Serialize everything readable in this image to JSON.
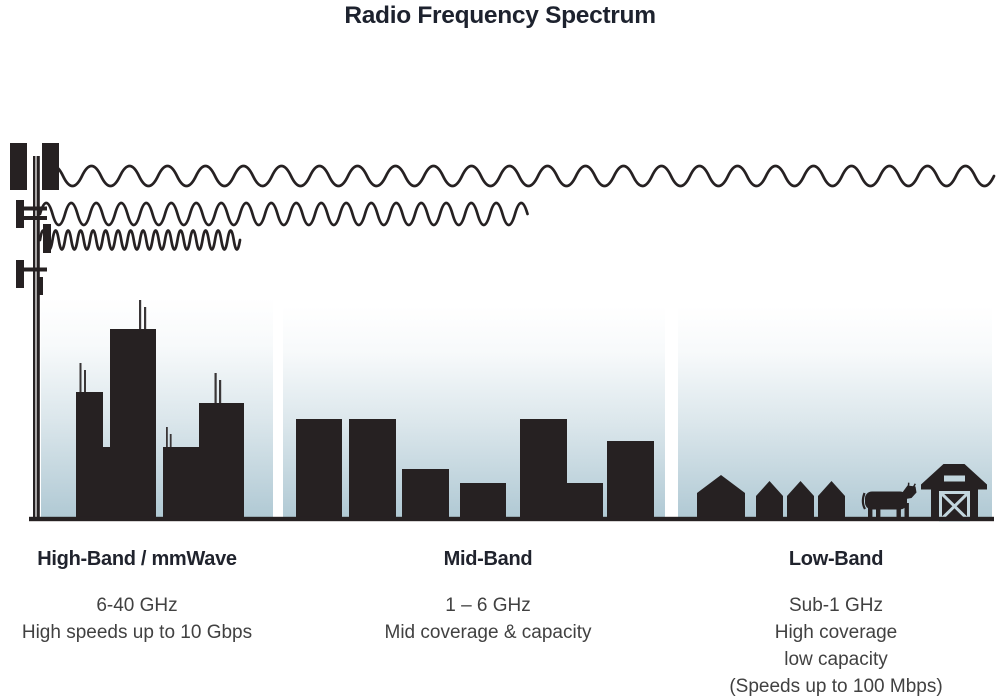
{
  "title": "Radio Frequency Spectrum",
  "bands": [
    {
      "id": "high-band",
      "name": "High-Band / mmWave",
      "details": [
        "6-40 GHz",
        "High speeds up to 10 Gbps"
      ]
    },
    {
      "id": "mid-band",
      "name": "Mid-Band",
      "details": [
        "1 – 6 GHz",
        "Mid coverage & capacity"
      ]
    },
    {
      "id": "low-band",
      "name": "Low-Band",
      "details": [
        "Sub-1 GHz",
        "High coverage",
        "low capacity",
        "(Speeds up to 100 Mbps)"
      ]
    }
  ],
  "icons": {
    "tower": "cell-tower-icon",
    "waves": [
      "wave-long-wavelength-low-band",
      "wave-medium-wavelength-mid-band",
      "wave-short-wavelength-high-band"
    ],
    "high_band_scene": "skyscraper-city-silhouette",
    "mid_band_scene": "mid-rise-buildings-silhouette",
    "low_band_scene": [
      "houses-silhouette",
      "cow-icon",
      "barn-icon"
    ]
  },
  "colors": {
    "ink": "#262122",
    "sky_tint": "#b0c9d4",
    "title_text": "#1d222e",
    "body_text": "#414141"
  }
}
